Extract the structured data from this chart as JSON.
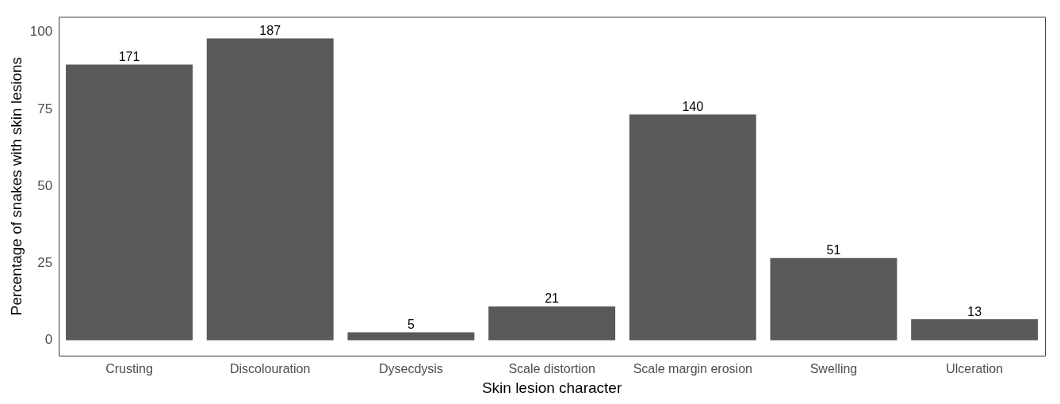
{
  "chart_data": {
    "type": "bar",
    "xlabel": "Skin lesion character",
    "ylabel": "Percentage of snakes with skin lesions",
    "categories": [
      "Crusting",
      "Discolouration",
      "Dysecdysis",
      "Scale distortion",
      "Scale margin erosion",
      "Swelling",
      "Ulceration"
    ],
    "values": [
      89.5,
      98,
      2.6,
      11,
      73.3,
      26.7,
      6.8
    ],
    "annotations": [
      {
        "text": "171",
        "x": "Crusting",
        "y": 89.5
      },
      {
        "text": "187",
        "x": "Discolouration",
        "y": 98
      },
      {
        "text": "5",
        "x": "Dysecdysis",
        "y": 2.6
      },
      {
        "text": "21",
        "x": "Scale distortion",
        "y": 11
      },
      {
        "text": "140",
        "x": "Scale margin erosion",
        "y": 73.3
      },
      {
        "text": "51",
        "x": "Swelling",
        "y": 26.7
      },
      {
        "text": "13",
        "x": "Ulceration",
        "y": 6.8
      }
    ],
    "color": "#595959",
    "ylim": [
      -5,
      105
    ],
    "yticks": [
      0,
      25,
      50,
      75,
      100
    ],
    "grid": false,
    "legend": false
  }
}
